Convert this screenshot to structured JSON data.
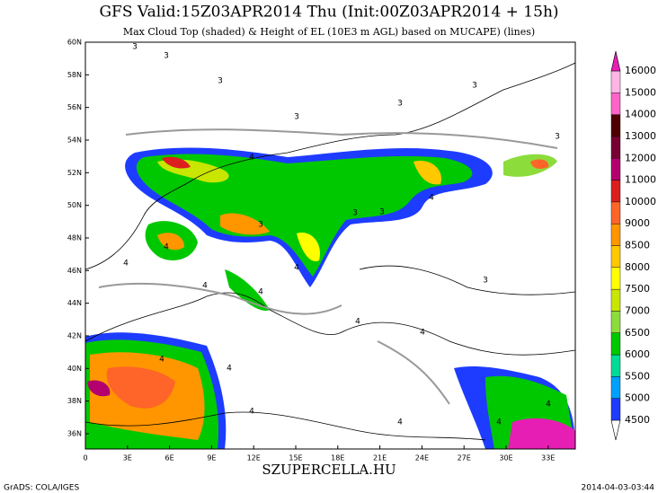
{
  "header": {
    "title": "GFS Valid:15Z03APR2014 Thu (Init:00Z03APR2014 + 15h)",
    "subtitle": "Max Cloud Top (shaded) & Height of EL (10E3 m AGL) based on MUCAPE) (lines)"
  },
  "map": {
    "lat_labels": [
      "60N",
      "58N",
      "56N",
      "54N",
      "52N",
      "50N",
      "48N",
      "46N",
      "44N",
      "42N",
      "40N",
      "38N",
      "36N"
    ],
    "lon_labels": [
      "0",
      "3E",
      "6E",
      "9E",
      "12E",
      "15E",
      "18E",
      "21E",
      "24E",
      "27E",
      "30E",
      "33E"
    ],
    "contour_labels": [
      "3",
      "3",
      "3",
      "3",
      "3",
      "3",
      "4",
      "3",
      "3",
      "4",
      "4",
      "3",
      "4",
      "4",
      "4",
      "4",
      "3",
      "4",
      "4",
      "4",
      "4",
      "4",
      "4",
      "3",
      "4",
      "4"
    ]
  },
  "colorbar": {
    "labels": [
      "4500",
      "5000",
      "5500",
      "6000",
      "6500",
      "7000",
      "7500",
      "8000",
      "8500",
      "9000",
      "10000",
      "11000",
      "12000",
      "13000",
      "14000",
      "15000",
      "16000"
    ],
    "colors": [
      "#ffffff",
      "#1e3cff",
      "#00a0ff",
      "#00dc96",
      "#00c800",
      "#8cdc3c",
      "#c8e600",
      "#ffff00",
      "#ffc800",
      "#ff9600",
      "#ff6428",
      "#dc1e1e",
      "#b4006e",
      "#780032",
      "#500000",
      "#ff64c8",
      "#ffb4e6",
      "#e61eb4"
    ]
  },
  "footer": {
    "site": "SZUPERCELLA.HU",
    "credit": "GrADS: COLA/IGES",
    "timestamp": "2014-04-03-03:44"
  }
}
